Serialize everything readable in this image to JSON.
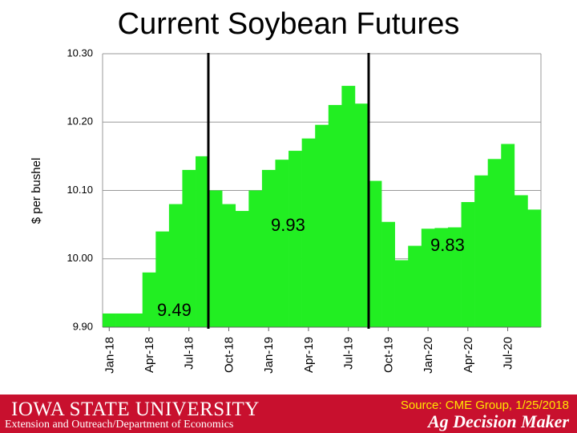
{
  "chart_data": {
    "type": "bar",
    "title": "Current Soybean Futures",
    "y_label": "$ per bushel",
    "categories": [
      "Jan-18",
      null,
      null,
      "Apr-18",
      null,
      null,
      "Jul-18",
      null,
      null,
      "Oct-18",
      null,
      null,
      "Jan-19",
      null,
      null,
      "Apr-19",
      null,
      null,
      "Jul-19",
      null,
      null,
      "Oct-19",
      null,
      null,
      "Jan-20",
      null,
      null,
      "Apr-20",
      null,
      null,
      "Jul-20",
      null,
      null
    ],
    "values": [
      9.92,
      9.92,
      9.92,
      9.98,
      10.04,
      10.08,
      10.13,
      10.15,
      10.1,
      10.08,
      10.07,
      10.1,
      10.13,
      10.145,
      10.158,
      10.176,
      10.196,
      10.225,
      10.253,
      10.227,
      10.114,
      10.054,
      9.998,
      10.019,
      10.044,
      10.045,
      10.046,
      10.083,
      10.122,
      10.146,
      10.168,
      10.093,
      10.072
    ],
    "color": "#22ee22",
    "ylim": [
      9.9,
      10.3
    ],
    "yticks": [
      {
        "value": 9.9,
        "label": "9.90"
      },
      {
        "value": 10.0,
        "label": "10.00"
      },
      {
        "value": 10.1,
        "label": "10.10"
      },
      {
        "value": 10.2,
        "label": "10.20"
      },
      {
        "value": 10.3,
        "label": "10.30"
      }
    ],
    "grid": true,
    "annotations": [
      "9.49",
      "9.93",
      "9.83"
    ]
  },
  "footer": {
    "university": "Iowa State University",
    "department": "Extension and Outreach/Department of Economics",
    "source": "Source: CME Group, 1/25/2018",
    "brand": "Ag Decision Maker"
  }
}
